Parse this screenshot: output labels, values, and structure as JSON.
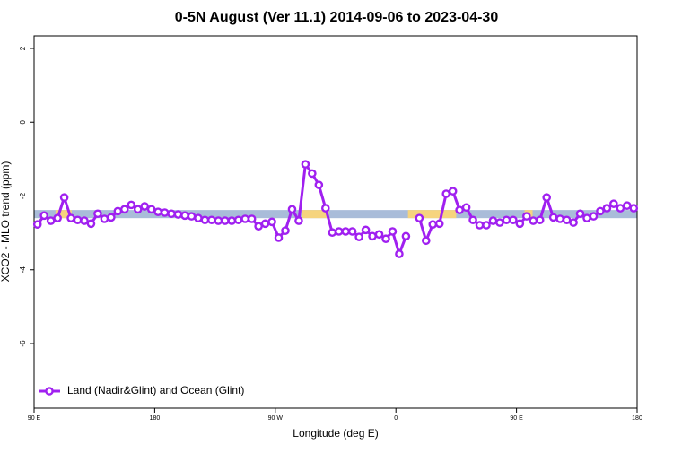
{
  "chart_data": {
    "type": "line",
    "title": "0-5N August (Ver 11.1)   2014-09-06 to 2023-04-30",
    "x_label": "Longitude (deg E)",
    "y_label": "XCO2 - MLO trend (ppm)",
    "xlim": [
      90,
      540
    ],
    "ylim": [
      -7.75,
      2.34
    ],
    "xticks": [
      {
        "value": 90,
        "label": "90 E"
      },
      180,
      {
        "value": 270,
        "label": "90 W"
      },
      {
        "value": 360,
        "label": "0"
      },
      {
        "value": 450,
        "label": "90 E"
      },
      {
        "value": 540,
        "label": "180"
      }
    ],
    "yticks": [
      2,
      0,
      -2,
      -4,
      -6
    ],
    "legend": "bottom-left",
    "band": {
      "ymin": -2.6,
      "ymax": -2.38,
      "color": "#a9bcd9"
    },
    "land_segments": {
      "color": "#f6d47e",
      "ranges": [
        [
          106,
          118
        ],
        [
          290,
          310
        ],
        [
          369,
          405
        ],
        [
          456,
          462
        ]
      ]
    },
    "x": [
      92.5,
      97.5,
      102.5,
      107.5,
      112.5,
      117.5,
      122.5,
      127.5,
      132.5,
      137.5,
      142.5,
      147.5,
      152.5,
      157.5,
      162.5,
      167.5,
      172.5,
      177.5,
      182.5,
      187.5,
      192.5,
      197.5,
      202.5,
      207.5,
      212.5,
      217.5,
      222.5,
      227.5,
      232.5,
      237.5,
      242.5,
      247.5,
      252.5,
      257.5,
      262.5,
      267.5,
      272.5,
      277.5,
      282.5,
      287.5,
      292.5,
      297.5,
      302.5,
      307.5,
      312.5,
      317.5,
      322.5,
      327.5,
      332.5,
      337.5,
      342.5,
      347.5,
      352.5,
      357.5,
      362.5,
      367.5,
      372.5,
      377.5,
      382.5,
      387.5,
      392.5,
      397.5,
      402.5,
      407.5,
      412.5,
      417.5,
      422.5,
      427.5,
      432.5,
      437.5,
      442.5,
      447.5,
      452.5,
      457.5,
      462.5,
      467.5,
      472.5,
      477.5,
      482.5,
      487.5,
      492.5,
      497.5,
      502.5,
      507.5,
      512.5,
      517.5,
      522.5,
      527.5,
      532.5,
      537.5
    ],
    "series": [
      {
        "name": "Land (Nadir&Glint) and Ocean (Glint)",
        "color": "#a020f0",
        "values": [
          -2.77,
          -2.53,
          -2.67,
          -2.6,
          -2.04,
          -2.6,
          -2.65,
          -2.67,
          -2.75,
          -2.48,
          -2.62,
          -2.58,
          -2.41,
          -2.36,
          -2.24,
          -2.36,
          -2.28,
          -2.36,
          -2.43,
          -2.45,
          -2.48,
          -2.5,
          -2.53,
          -2.55,
          -2.6,
          -2.65,
          -2.65,
          -2.67,
          -2.67,
          -2.67,
          -2.65,
          -2.62,
          -2.62,
          -2.82,
          -2.75,
          -2.7,
          -3.13,
          -2.94,
          -2.36,
          -2.67,
          -1.14,
          -1.39,
          -1.7,
          -2.33,
          -2.99,
          -2.96,
          -2.96,
          -2.96,
          -3.11,
          -2.92,
          -3.09,
          -3.04,
          -3.16,
          -2.96,
          -3.57,
          -3.09,
          null,
          -2.6,
          -3.21,
          -2.77,
          -2.75,
          -1.94,
          -1.87,
          -2.38,
          -2.31,
          -2.65,
          -2.79,
          -2.79,
          -2.67,
          -2.72,
          -2.65,
          -2.65,
          -2.75,
          -2.55,
          -2.67,
          -2.65,
          -2.04,
          -2.58,
          -2.62,
          -2.65,
          -2.72,
          -2.48,
          -2.6,
          -2.55,
          -2.41,
          -2.33,
          -2.21,
          -2.33,
          -2.26,
          -2.33
        ]
      }
    ]
  }
}
